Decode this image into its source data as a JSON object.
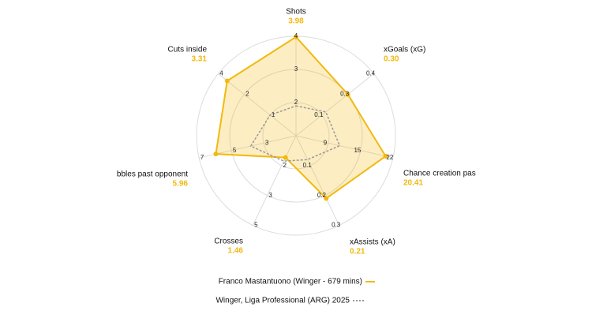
{
  "chart_data": {
    "type": "radar",
    "categories": [
      "Shots",
      "xGoals (xG)",
      "Chance creation pas",
      "xAssists (xA)",
      "Crosses",
      "bbles past opponent",
      "Cuts inside"
    ],
    "axis_lims": [
      [
        1,
        4
      ],
      [
        0,
        0.4
      ],
      [
        3,
        22
      ],
      [
        0,
        0.3
      ],
      [
        0,
        5
      ],
      [
        1,
        7
      ],
      [
        0,
        4
      ]
    ],
    "axis_ticks": [
      [
        2,
        3,
        4
      ],
      [
        0.1,
        0.3,
        0.4
      ],
      [
        9,
        15,
        22
      ],
      [
        0.1,
        0.2,
        0.3
      ],
      [
        2,
        3,
        5
      ],
      [
        3,
        5,
        7
      ],
      [
        1,
        2,
        4
      ]
    ],
    "series": [
      {
        "name": "Franco Mastantuono (Winger - 679 mins)",
        "color": "#f2b90f",
        "values": [
          3.98,
          0.3,
          20.41,
          0.21,
          1.46,
          5.96,
          3.31
        ],
        "value_labels": [
          "3.98",
          "0.30",
          "20.41",
          "0.21",
          "1.46",
          "5.96",
          "3.31"
        ]
      },
      {
        "name": "Winger, Liga Professional (ARG) 2025",
        "color": "#999999",
        "values": [
          1.9,
          0.13,
          11.1,
          0.08,
          1.7,
          3.8,
          1.0
        ]
      }
    ],
    "grid": true
  }
}
